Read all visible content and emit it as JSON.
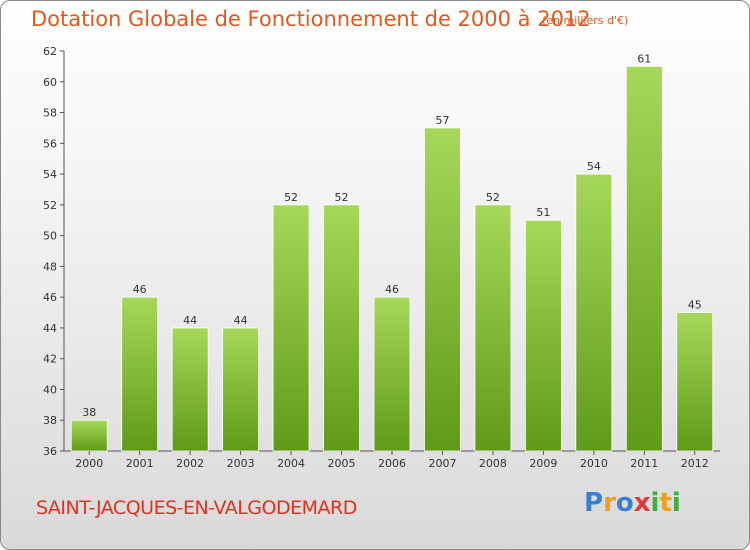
{
  "title": "Dotation Globale de Fonctionnement de 2000 à 2012",
  "subtitle": "(en milliers d'€)",
  "commune": "SAINT-JACQUES-EN-VALGODEMARD",
  "logo": {
    "text": "Proxiti",
    "letters": [
      "P",
      "r",
      "o",
      "x",
      "i",
      "t",
      "i"
    ],
    "colors": [
      "#3a7fd0",
      "#e8a020",
      "#3a7fd0",
      "#e03a3a",
      "#3ab040",
      "#e8a020",
      "#3ab040"
    ]
  },
  "colors": {
    "bar_top": "#a6d85a",
    "bar_bottom": "#5f9a18",
    "title": "#e05a1e",
    "commune": "#e0331e"
  },
  "chart_data": {
    "type": "bar",
    "categories": [
      "2000",
      "2001",
      "2002",
      "2003",
      "2004",
      "2005",
      "2006",
      "2007",
      "2008",
      "2009",
      "2010",
      "2011",
      "2012"
    ],
    "values": [
      38,
      46,
      44,
      44,
      52,
      52,
      46,
      57,
      52,
      51,
      54,
      61,
      45
    ],
    "ylim": [
      36,
      62
    ],
    "yticks": [
      36,
      38,
      40,
      42,
      44,
      46,
      48,
      50,
      52,
      54,
      56,
      58,
      60,
      62
    ],
    "grid": false,
    "xlabel": "",
    "ylabel": ""
  }
}
